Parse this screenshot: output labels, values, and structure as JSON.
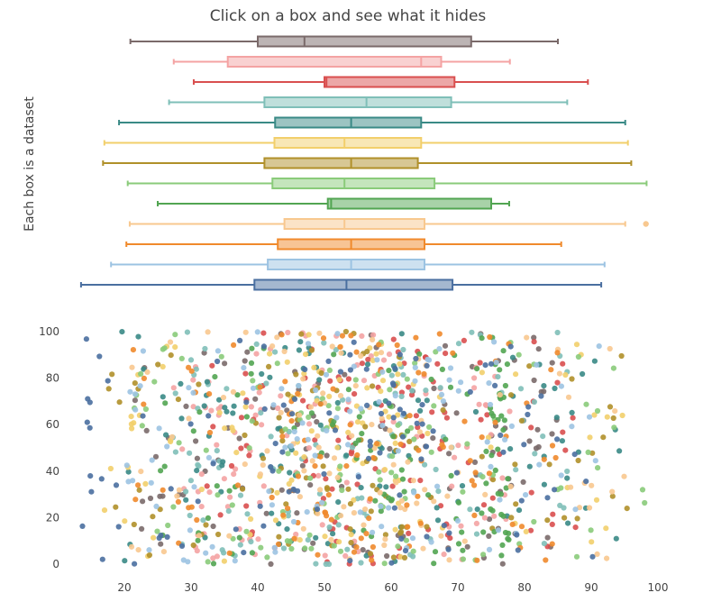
{
  "chart_data": [
    {
      "type": "box",
      "orientation": "horizontal",
      "title": "Click on a box and see what it hides",
      "ylabel": "Each box is a dataset",
      "xlim": [
        12,
        100
      ],
      "series": [
        {
          "color": "#7a6a6a",
          "min": 20.9,
          "q1": 40.0,
          "median": 47.0,
          "q3": 72.0,
          "max": 85.0
        },
        {
          "color": "#f4a3a3",
          "min": 27.4,
          "q1": 35.5,
          "median": 64.5,
          "q3": 67.5,
          "max": 77.8
        },
        {
          "color": "#d94f4f",
          "min": 30.4,
          "q1": 50.0,
          "median": 50.3,
          "q3": 69.5,
          "max": 89.5
        },
        {
          "color": "#7fbfb8",
          "min": 26.7,
          "q1": 41.0,
          "median": 56.3,
          "q3": 69.0,
          "max": 86.4
        },
        {
          "color": "#3a8a86",
          "min": 19.2,
          "q1": 42.6,
          "median": 54.0,
          "q3": 64.5,
          "max": 95.1
        },
        {
          "color": "#f2cf6b",
          "min": 17.0,
          "q1": 42.5,
          "median": 53.0,
          "q3": 64.5,
          "max": 95.5
        },
        {
          "color": "#b0902a",
          "min": 16.8,
          "q1": 41.0,
          "median": 54.0,
          "q3": 64.0,
          "max": 96.0
        },
        {
          "color": "#8acb7a",
          "min": 20.5,
          "q1": 42.2,
          "median": 53.0,
          "q3": 66.5,
          "max": 98.3
        },
        {
          "color": "#52a552",
          "min": 25.0,
          "q1": 50.5,
          "median": 51.0,
          "q3": 75.0,
          "max": 77.7
        },
        {
          "color": "#f8c88f",
          "min": 20.8,
          "q1": 44.0,
          "median": 53.0,
          "q3": 65.0,
          "max": 95.1,
          "outliers": [
            98.2
          ]
        },
        {
          "color": "#f08a2c",
          "min": 20.3,
          "q1": 43.0,
          "median": 54.0,
          "q3": 65.0,
          "max": 85.5
        },
        {
          "color": "#9cc3e2",
          "min": 18.0,
          "q1": 41.5,
          "median": 54.0,
          "q3": 65.0,
          "max": 92.0
        },
        {
          "color": "#4a6fa0",
          "min": 13.5,
          "q1": 39.5,
          "median": 53.3,
          "q3": 69.2,
          "max": 91.5
        }
      ]
    },
    {
      "type": "scatter",
      "xlim": [
        12,
        100
      ],
      "ylim": [
        0,
        100
      ],
      "xticks": [
        20,
        30,
        40,
        50,
        60,
        70,
        80,
        90,
        100
      ],
      "yticks": [
        0,
        20,
        40,
        60,
        80,
        100
      ],
      "colors": [
        "#7a6a6a",
        "#f4a3a3",
        "#d94f4f",
        "#7fbfb8",
        "#3a8a86",
        "#f2cf6b",
        "#b0902a",
        "#8acb7a",
        "#52a552",
        "#f8c88f",
        "#f08a2c",
        "#9cc3e2",
        "#4a6fa0"
      ],
      "points_per_series": 110,
      "points_note_x_range": "x spans each series' box range"
    }
  ]
}
